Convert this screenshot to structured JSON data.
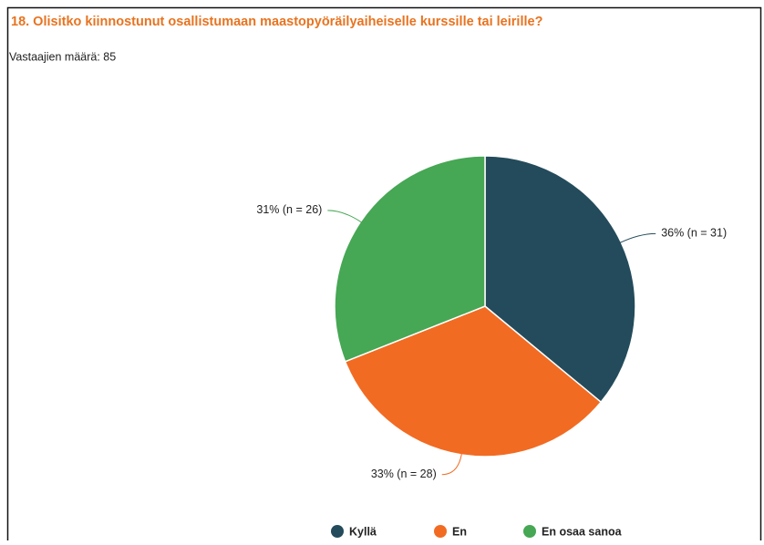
{
  "chart_data": {
    "type": "pie",
    "title": "18. Olisitko kiinnostunut osallistumaan maastopyöräilyaiheiselle kurssille tai leirille?",
    "subtitle": "Vastaajien määrä: 85",
    "categories": [
      "Kyllä",
      "En",
      "En osaa sanoa"
    ],
    "values": [
      36,
      33,
      31
    ],
    "value_labels": [
      "36% (n = 31)",
      "33% (n = 28)",
      "31% (n = 26)"
    ],
    "colors": [
      "#234b5b",
      "#f26b22",
      "#46a754"
    ],
    "legend": "bottom"
  }
}
